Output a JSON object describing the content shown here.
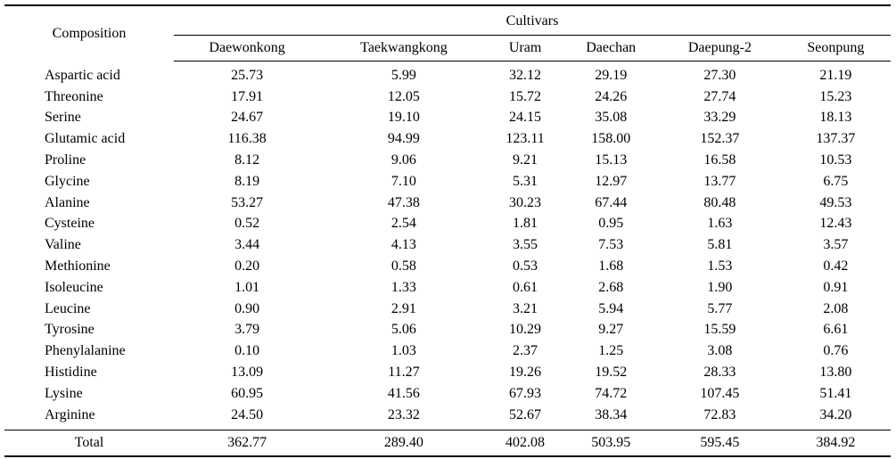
{
  "header": {
    "composition_label": "Composition",
    "group_label": "Cultivars",
    "cultivars": [
      "Daewonkong",
      "Taekwangkong",
      "Uram",
      "Daechan",
      "Daepung-2",
      "Seonpung"
    ]
  },
  "rows": [
    {
      "name": "Aspartic acid",
      "values": [
        "25.73",
        "5.99",
        "32.12",
        "29.19",
        "27.30",
        "21.19"
      ]
    },
    {
      "name": "Threonine",
      "values": [
        "17.91",
        "12.05",
        "15.72",
        "24.26",
        "27.74",
        "15.23"
      ]
    },
    {
      "name": "Serine",
      "values": [
        "24.67",
        "19.10",
        "24.15",
        "35.08",
        "33.29",
        "18.13"
      ]
    },
    {
      "name": "Glutamic acid",
      "values": [
        "116.38",
        "94.99",
        "123.11",
        "158.00",
        "152.37",
        "137.37"
      ]
    },
    {
      "name": "Proline",
      "values": [
        "8.12",
        "9.06",
        "9.21",
        "15.13",
        "16.58",
        "10.53"
      ]
    },
    {
      "name": "Glycine",
      "values": [
        "8.19",
        "7.10",
        "5.31",
        "12.97",
        "13.77",
        "6.75"
      ]
    },
    {
      "name": "Alanine",
      "values": [
        "53.27",
        "47.38",
        "30.23",
        "67.44",
        "80.48",
        "49.53"
      ]
    },
    {
      "name": "Cysteine",
      "values": [
        "0.52",
        "2.54",
        "1.81",
        "0.95",
        "1.63",
        "12.43"
      ]
    },
    {
      "name": "Valine",
      "values": [
        "3.44",
        "4.13",
        "3.55",
        "7.53",
        "5.81",
        "3.57"
      ]
    },
    {
      "name": "Methionine",
      "values": [
        "0.20",
        "0.58",
        "0.53",
        "1.68",
        "1.53",
        "0.42"
      ]
    },
    {
      "name": "Isoleucine",
      "values": [
        "1.01",
        "1.33",
        "0.61",
        "2.68",
        "1.90",
        "0.91"
      ]
    },
    {
      "name": "Leucine",
      "values": [
        "0.90",
        "2.91",
        "3.21",
        "5.94",
        "5.77",
        "2.08"
      ]
    },
    {
      "name": "Tyrosine",
      "values": [
        "3.79",
        "5.06",
        "10.29",
        "9.27",
        "15.59",
        "6.61"
      ]
    },
    {
      "name": "Phenylalanine",
      "values": [
        "0.10",
        "1.03",
        "2.37",
        "1.25",
        "3.08",
        "0.76"
      ]
    },
    {
      "name": "Histidine",
      "values": [
        "13.09",
        "11.27",
        "19.26",
        "19.52",
        "28.33",
        "13.80"
      ]
    },
    {
      "name": "Lysine",
      "values": [
        "60.95",
        "41.56",
        "67.93",
        "74.72",
        "107.45",
        "51.41"
      ]
    },
    {
      "name": "Arginine",
      "values": [
        "24.50",
        "23.32",
        "52.67",
        "38.34",
        "72.83",
        "34.20"
      ]
    }
  ],
  "total": {
    "name": "Total",
    "values": [
      "362.77",
      "289.40",
      "402.08",
      "503.95",
      "595.45",
      "384.92"
    ]
  }
}
